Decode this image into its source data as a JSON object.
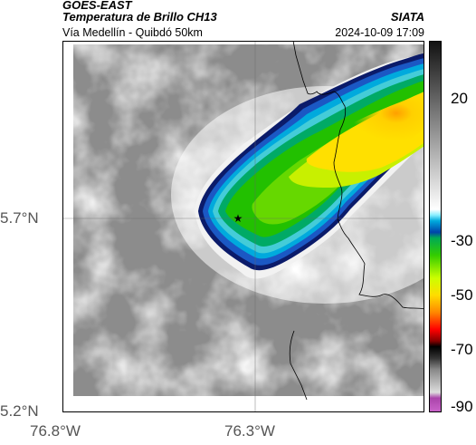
{
  "header": {
    "satellite": "GOES-EAST",
    "product": "Temperatura de Brillo CH13",
    "org": "SIATA",
    "subtitle": "Vía Medellín - Quibdó 50km",
    "datetime": "2024-10-09 17:09"
  },
  "axes": {
    "lat_labels": [
      "5.7°N",
      "5.2°N"
    ],
    "lon_labels": [
      "76.8°W",
      "76.3°W"
    ]
  },
  "colorbar": {
    "labels": [
      "20",
      "-30",
      "-50",
      "-70",
      "-90"
    ],
    "range": [
      -95,
      35
    ],
    "stops": [
      {
        "v": -95,
        "c": "#cc66cc"
      },
      {
        "v": -90,
        "c": "#aa44aa"
      },
      {
        "v": -88,
        "c": "#dddddd"
      },
      {
        "v": -80,
        "c": "#888888"
      },
      {
        "v": -76,
        "c": "#333333"
      },
      {
        "v": -72,
        "c": "#000000"
      },
      {
        "v": -70,
        "c": "#880000"
      },
      {
        "v": -66,
        "c": "#ff0000"
      },
      {
        "v": -60,
        "c": "#ff8800"
      },
      {
        "v": -54,
        "c": "#ffdd00"
      },
      {
        "v": -48,
        "c": "#ccff00"
      },
      {
        "v": -40,
        "c": "#33cc00"
      },
      {
        "v": -34,
        "c": "#00aa55"
      },
      {
        "v": -32,
        "c": "#0044aa"
      },
      {
        "v": -28,
        "c": "#00aadd"
      },
      {
        "v": -26,
        "c": "#88eeff"
      },
      {
        "v": -24,
        "c": "#ffffff"
      },
      {
        "v": 10,
        "c": "#777777"
      },
      {
        "v": 35,
        "c": "#111111"
      }
    ]
  },
  "marker": {
    "name": "star",
    "symbol": "★"
  },
  "colors": {
    "green": "#33cc00",
    "yellow": "#ffdd00",
    "cyan": "#00aadd",
    "navy": "#0044aa",
    "border": "#000000"
  }
}
